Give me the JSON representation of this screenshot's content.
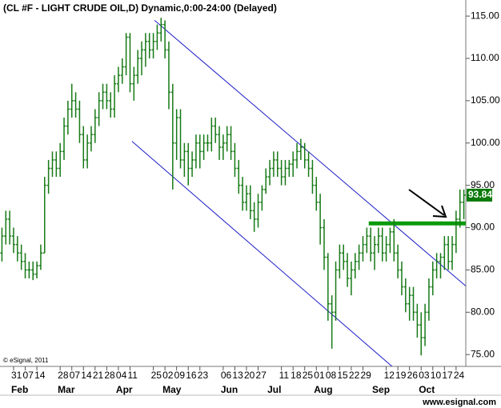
{
  "chart_data": {
    "type": "ohlc",
    "title": "(CL #F - LIGHT CRUDE OIL,D) Dynamic,0:00-24:00 (Delayed)",
    "copyright": "© eSignal, 2011",
    "footer": "www.esignal.com",
    "color": "#167a16",
    "ylim": [
      73.6,
      116.9
    ],
    "yticks": [
      {
        "value": 75,
        "label": "75.00"
      },
      {
        "value": 80,
        "label": "80.00"
      },
      {
        "value": 85,
        "label": "85.00"
      },
      {
        "value": 90,
        "label": "90.00"
      },
      {
        "value": 95,
        "label": "95.00"
      },
      {
        "value": 100,
        "label": "100.00"
      },
      {
        "value": 105,
        "label": "105.00"
      },
      {
        "value": 110,
        "label": "110.00"
      },
      {
        "value": 115,
        "label": "115.00"
      }
    ],
    "categories": [
      null,
      null,
      null,
      "31",
      null,
      null,
      "07",
      null,
      null,
      "14",
      null,
      null,
      null,
      null,
      null,
      "28",
      null,
      null,
      "07",
      null,
      null,
      "14",
      null,
      null,
      "21",
      null,
      null,
      "28",
      null,
      null,
      "04",
      null,
      null,
      "11",
      null,
      null,
      null,
      null,
      null,
      "25",
      null,
      null,
      "02",
      null,
      null,
      "09",
      null,
      null,
      "16",
      null,
      null,
      "23",
      null,
      null,
      null,
      null,
      null,
      "06",
      null,
      null,
      "13",
      null,
      null,
      "20",
      null,
      null,
      "27",
      null,
      null,
      null,
      null,
      null,
      "11",
      null,
      null,
      "18",
      null,
      null,
      "25",
      null,
      null,
      "01",
      null,
      null,
      "08",
      null,
      null,
      "15",
      null,
      null,
      "22",
      null,
      null,
      "29",
      null,
      null,
      null,
      null,
      null,
      "12",
      null,
      null,
      "19",
      null,
      null,
      "26",
      null,
      null,
      "03",
      null,
      null,
      "10",
      null,
      null,
      "17",
      null,
      null,
      "24",
      null,
      null
    ],
    "months": [
      null,
      null,
      null,
      "Feb",
      null,
      null,
      null,
      null,
      null,
      null,
      null,
      null,
      null,
      null,
      null,
      "Mar",
      null,
      null,
      null,
      null,
      null,
      null,
      null,
      null,
      null,
      null,
      null,
      null,
      null,
      null,
      "Apr",
      null,
      null,
      null,
      null,
      null,
      null,
      null,
      null,
      null,
      null,
      null,
      "May",
      null,
      null,
      null,
      null,
      null,
      null,
      null,
      null,
      null,
      null,
      null,
      null,
      null,
      null,
      "Jun",
      null,
      null,
      null,
      null,
      null,
      null,
      null,
      null,
      null,
      null,
      null,
      "Jul",
      null,
      null,
      null,
      null,
      null,
      null,
      null,
      null,
      null,
      null,
      null,
      "Aug",
      null,
      null,
      null,
      null,
      null,
      null,
      null,
      null,
      null,
      null,
      null,
      null,
      null,
      null,
      "Sep",
      null,
      null,
      null,
      null,
      null,
      null,
      null,
      null,
      null,
      null,
      null,
      "Oct",
      null,
      null,
      null,
      null,
      null,
      null,
      null,
      null,
      null,
      null,
      null
    ],
    "ohlc": [
      [
        87,
        90,
        86,
        89
      ],
      [
        89,
        92,
        88,
        91
      ],
      [
        91,
        92,
        88,
        89
      ],
      [
        89,
        90,
        87,
        88
      ],
      [
        88,
        89,
        86,
        87
      ],
      [
        87,
        88,
        85,
        86
      ],
      [
        86,
        87,
        84,
        85
      ],
      [
        85,
        86,
        84,
        85
      ],
      [
        85,
        86,
        83.8,
        84.5
      ],
      [
        84.5,
        86,
        84,
        85.5
      ],
      [
        85.5,
        88,
        85,
        87
      ],
      [
        87,
        96,
        87,
        95
      ],
      [
        95,
        98,
        94,
        97
      ],
      [
        97,
        99,
        96,
        98
      ],
      [
        98,
        99,
        96,
        97
      ],
      [
        97,
        100,
        96,
        99
      ],
      [
        99,
        103,
        98,
        102
      ],
      [
        102,
        105,
        101,
        104
      ],
      [
        104,
        107,
        103,
        105
      ],
      [
        105,
        106,
        103,
        104
      ],
      [
        104,
        105,
        100,
        101
      ],
      [
        101,
        102,
        97,
        98
      ],
      [
        98,
        101,
        97,
        100
      ],
      [
        100,
        102,
        99,
        101
      ],
      [
        101,
        104,
        100,
        103
      ],
      [
        103,
        106,
        102,
        105
      ],
      [
        105,
        107,
        104,
        106
      ],
      [
        106,
        107,
        104,
        105
      ],
      [
        105,
        106,
        103,
        104
      ],
      [
        104,
        108,
        103,
        107
      ],
      [
        107,
        109,
        106,
        108
      ],
      [
        108,
        110,
        107,
        109
      ],
      [
        109,
        113,
        108,
        112.5
      ],
      [
        112.5,
        113,
        106,
        107
      ],
      [
        107,
        109,
        105,
        108
      ],
      [
        108,
        111,
        107,
        110
      ],
      [
        110,
        112,
        108,
        111
      ],
      [
        111,
        113,
        109,
        112
      ],
      [
        112,
        113,
        110,
        111
      ],
      [
        111,
        113,
        110,
        112
      ],
      [
        112,
        114,
        111,
        113
      ],
      [
        113,
        114.8,
        112,
        114
      ],
      [
        114,
        114.5,
        110,
        111
      ],
      [
        111,
        112,
        104,
        106
      ],
      [
        106,
        107,
        94.5,
        100
      ],
      [
        100,
        104,
        98,
        103
      ],
      [
        103,
        104,
        97,
        98
      ],
      [
        98,
        100,
        96,
        99
      ],
      [
        99,
        100,
        95,
        97
      ],
      [
        97,
        99,
        96,
        98
      ],
      [
        98,
        101,
        97,
        100
      ],
      [
        100,
        101,
        97,
        99
      ],
      [
        99,
        101,
        98,
        100
      ],
      [
        100,
        101,
        99,
        100
      ],
      [
        100,
        103,
        99,
        102
      ],
      [
        102,
        103,
        100,
        101
      ],
      [
        101,
        102,
        98,
        99.5
      ],
      [
        99.5,
        101,
        98,
        100
      ],
      [
        100,
        102,
        99,
        101
      ],
      [
        101,
        102,
        98,
        99
      ],
      [
        99,
        100,
        96,
        97
      ],
      [
        97,
        98,
        94,
        95
      ],
      [
        95,
        96,
        92,
        93
      ],
      [
        93,
        95,
        92,
        94
      ],
      [
        94,
        95,
        91,
        92
      ],
      [
        92,
        93,
        89.5,
        91
      ],
      [
        91,
        94,
        90,
        93
      ],
      [
        93,
        95,
        92,
        94.5
      ],
      [
        94.5,
        97,
        94,
        96
      ],
      [
        96,
        98,
        95,
        97
      ],
      [
        97,
        99,
        96,
        98
      ],
      [
        98,
        99,
        96,
        97
      ],
      [
        97,
        98,
        95,
        96
      ],
      [
        96,
        98,
        95,
        97
      ],
      [
        97,
        98,
        96,
        97.5
      ],
      [
        97.5,
        99,
        96,
        98
      ],
      [
        98,
        100,
        97,
        99
      ],
      [
        99,
        100.5,
        98,
        99.5
      ],
      [
        99.5,
        100,
        97,
        98
      ],
      [
        98,
        99,
        96,
        97
      ],
      [
        97,
        98,
        94,
        95
      ],
      [
        95,
        96,
        92,
        93
      ],
      [
        93,
        94,
        88,
        90
      ],
      [
        90,
        91,
        85,
        86.5
      ],
      [
        86.5,
        87,
        79,
        81
      ],
      [
        81,
        82,
        75.7,
        80
      ],
      [
        80,
        86,
        79,
        85
      ],
      [
        85,
        88,
        84,
        87
      ],
      [
        87,
        88,
        85,
        86
      ],
      [
        86,
        87,
        83,
        84
      ],
      [
        84,
        86,
        82,
        85
      ],
      [
        85,
        87,
        84,
        86
      ],
      [
        86,
        88,
        85,
        87
      ],
      [
        87,
        89,
        86,
        88
      ],
      [
        88,
        90,
        87,
        89
      ],
      [
        89,
        90,
        86,
        87
      ],
      [
        87,
        89,
        85,
        88
      ],
      [
        88,
        90,
        87,
        89
      ],
      [
        89,
        90,
        86,
        87
      ],
      [
        87,
        89,
        86,
        88
      ],
      [
        88,
        90,
        87,
        89.5
      ],
      [
        89.5,
        91,
        86,
        87
      ],
      [
        87,
        88,
        84,
        85
      ],
      [
        85,
        86,
        82,
        83
      ],
      [
        83,
        84,
        80,
        81
      ],
      [
        81,
        83,
        79,
        82
      ],
      [
        82,
        83,
        79,
        80
      ],
      [
        80,
        81,
        77,
        78.5
      ],
      [
        78.5,
        80,
        74.9,
        77
      ],
      [
        77,
        81,
        76,
        80
      ],
      [
        80,
        84,
        79,
        83
      ],
      [
        83,
        86,
        82,
        85
      ],
      [
        85,
        87,
        84,
        86
      ],
      [
        86,
        87,
        84,
        86.5
      ],
      [
        86.5,
        89,
        85,
        88
      ],
      [
        88,
        89,
        85,
        86
      ],
      [
        86,
        89,
        85,
        88
      ],
      [
        88,
        92,
        87,
        91
      ],
      [
        91,
        94.5,
        90,
        93
      ],
      [
        93,
        94.5,
        91,
        93.84
      ]
    ],
    "last_label": "93.84",
    "trendlines": [
      {
        "color": "#1c1cc8",
        "width": 1,
        "x": [
          39.8,
          120
        ],
        "y": [
          114.5,
          83.1
        ]
      },
      {
        "color": "#1c1cc8",
        "width": 1,
        "x": [
          34,
          101
        ],
        "y": [
          100.2,
          73.6
        ]
      },
      {
        "color": "#0a9a0a",
        "width": 5,
        "x": [
          95,
          120
        ],
        "y": [
          90.5,
          90.5
        ]
      }
    ]
  }
}
